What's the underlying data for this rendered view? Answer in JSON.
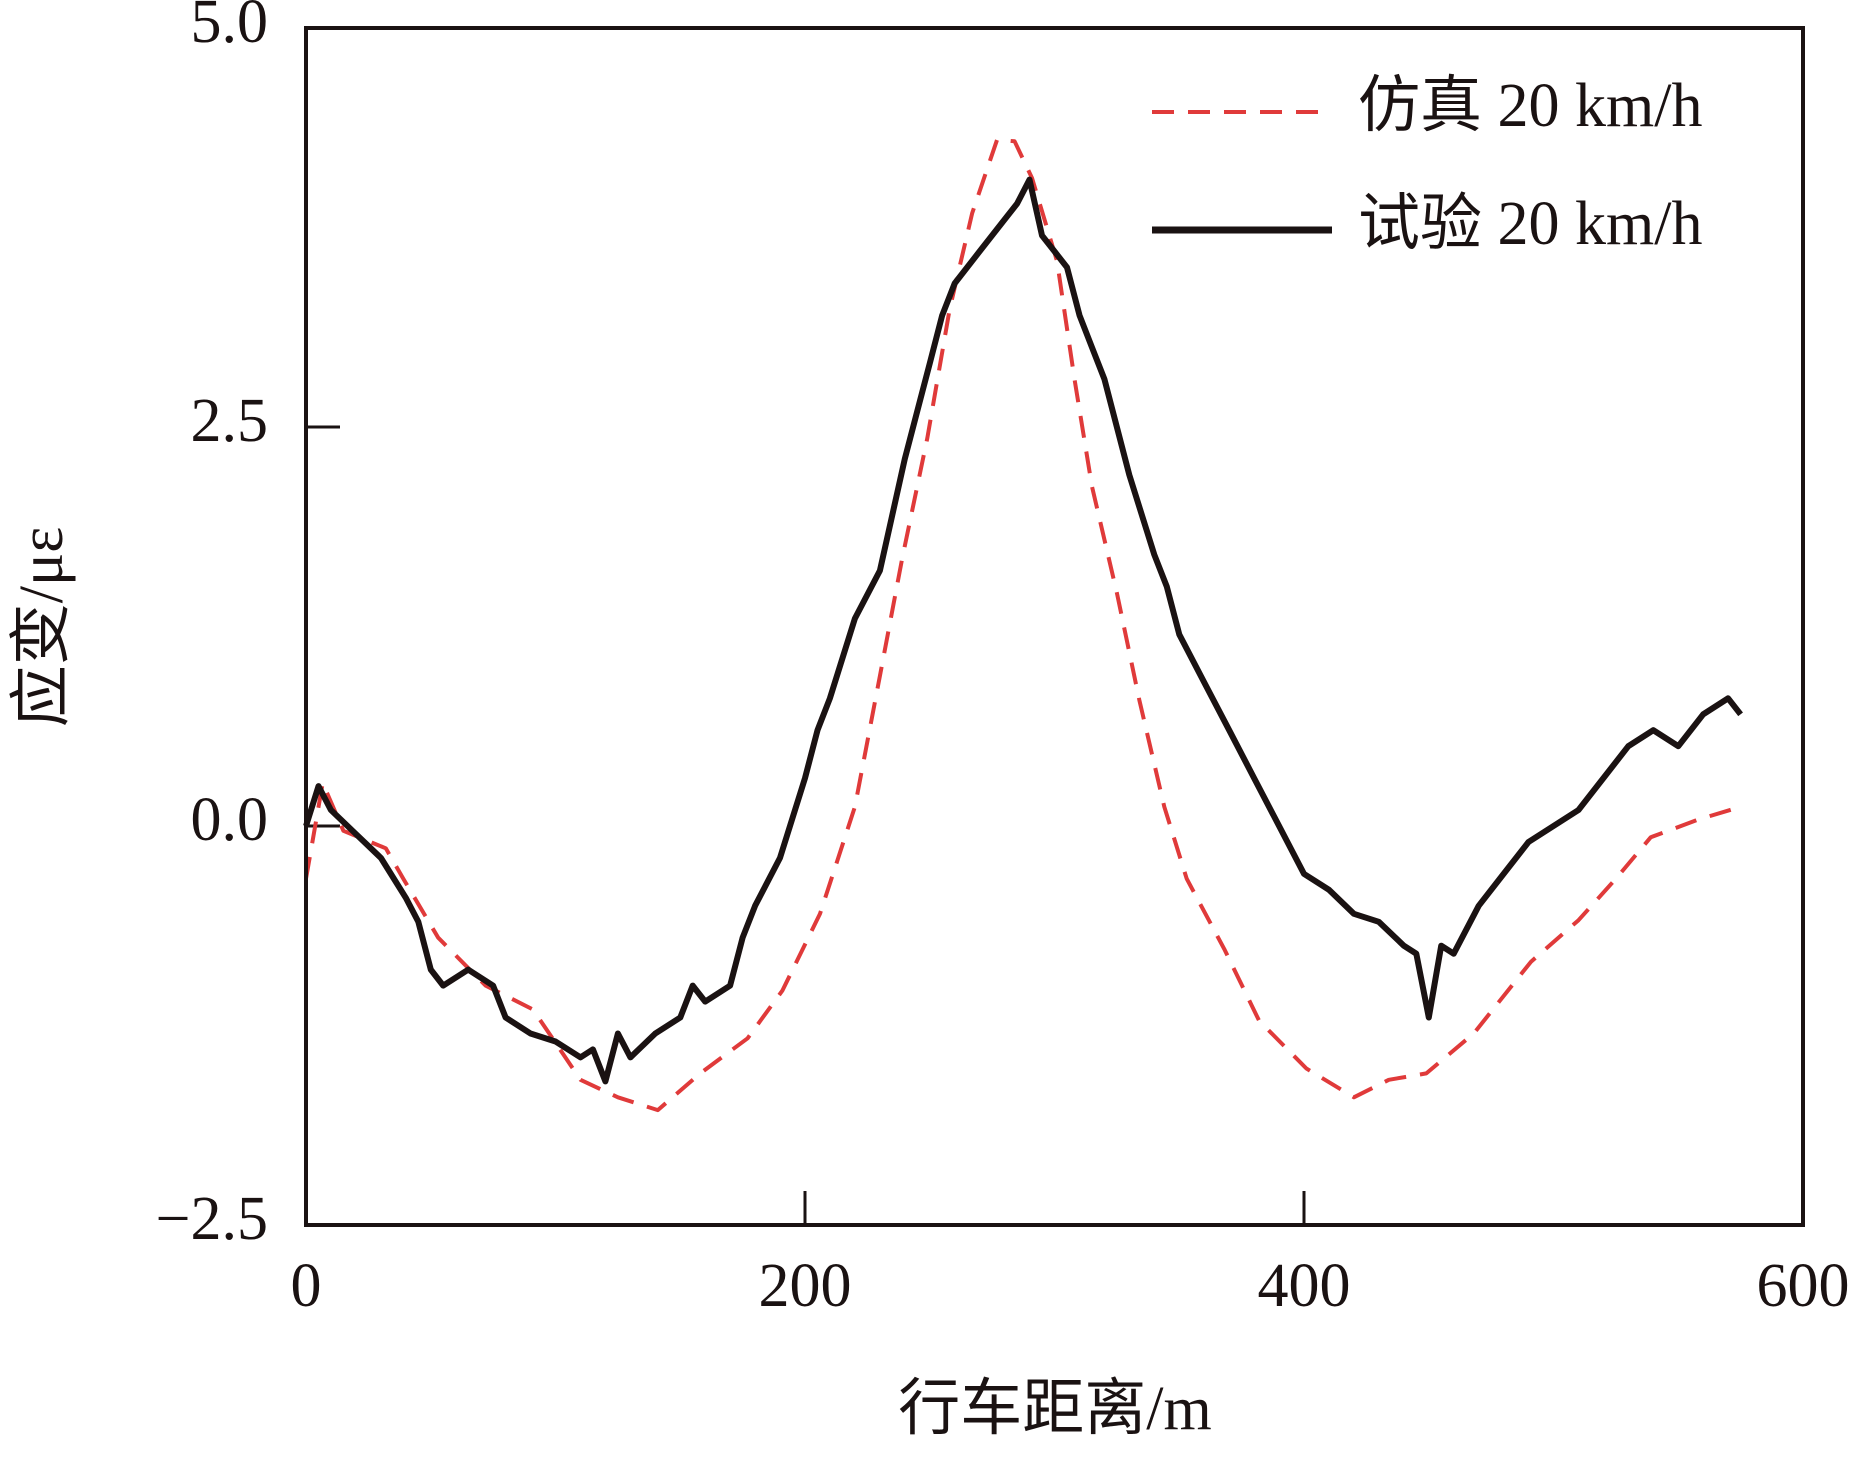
{
  "chart_data": {
    "type": "line",
    "x_label": "行车距离/m",
    "y_label": "应变/με",
    "xlim": [
      0,
      600
    ],
    "xticks": [
      0,
      200,
      400,
      600
    ],
    "ylim": [
      -2.5,
      5.0
    ],
    "yticks": [
      {
        "value": -2.5,
        "label": "−2.5"
      },
      {
        "value": 0,
        "label": "0.0"
      },
      2.5,
      {
        "value": 5.0,
        "label": "5.0"
      }
    ],
    "legend": "upper right",
    "series": [
      {
        "name": "仿真 20 km/h",
        "color": "#e03a3a",
        "style": "dashed",
        "x": [
          0,
          6.7,
          15,
          32,
          39,
          53,
          72,
          91,
          110,
          125,
          141,
          158,
          177,
          191,
          206,
          220,
          230,
          239,
          249,
          258,
          267,
          277,
          284,
          291,
          301,
          308,
          315,
          325,
          334,
          344,
          353,
          368,
          382,
          401,
          420,
          434,
          449,
          468,
          491,
          510,
          525,
          539,
          558,
          575
        ],
        "values": [
          -0.33,
          0.27,
          -0.03,
          -0.14,
          -0.33,
          -0.7,
          -1.0,
          -1.15,
          -1.59,
          -1.7,
          -1.78,
          -1.55,
          -1.33,
          -1.03,
          -0.55,
          0.12,
          0.94,
          1.68,
          2.43,
          3.24,
          3.84,
          4.3,
          4.29,
          4.06,
          3.54,
          2.8,
          2.13,
          1.46,
          0.79,
          0.12,
          -0.33,
          -0.77,
          -1.22,
          -1.52,
          -1.7,
          -1.59,
          -1.55,
          -1.3,
          -0.85,
          -0.59,
          -0.33,
          -0.07,
          0.04,
          0.12
        ]
      },
      {
        "name": "试验 20 km/h",
        "color": "#1a1212",
        "style": "solid",
        "x": [
          0,
          5,
          10,
          20,
          30,
          40,
          45,
          50,
          55,
          65,
          75,
          80,
          90,
          100,
          110,
          115,
          120,
          125,
          130,
          140,
          150,
          155,
          160,
          170,
          175,
          180,
          190,
          200,
          205,
          210,
          220,
          230,
          240,
          245,
          250,
          255,
          260,
          270,
          280,
          285,
          290,
          295,
          300,
          305,
          310,
          315,
          320,
          330,
          340,
          345,
          350,
          360,
          370,
          380,
          390,
          400,
          410,
          420,
          430,
          440,
          445,
          450,
          455,
          460,
          470,
          480,
          490,
          500,
          510,
          520,
          530,
          540,
          550,
          560,
          570,
          575
        ],
        "values": [
          0.0,
          0.25,
          0.1,
          -0.05,
          -0.2,
          -0.45,
          -0.6,
          -0.9,
          -1.0,
          -0.9,
          -1.0,
          -1.2,
          -1.3,
          -1.35,
          -1.45,
          -1.4,
          -1.6,
          -1.3,
          -1.45,
          -1.3,
          -1.2,
          -1.0,
          -1.1,
          -1.0,
          -0.7,
          -0.5,
          -0.2,
          0.3,
          0.6,
          0.8,
          1.3,
          1.6,
          2.3,
          2.6,
          2.9,
          3.2,
          3.4,
          3.6,
          3.8,
          3.9,
          4.05,
          3.7,
          3.6,
          3.5,
          3.2,
          3.0,
          2.8,
          2.2,
          1.7,
          1.5,
          1.2,
          0.9,
          0.6,
          0.3,
          0.0,
          -0.3,
          -0.4,
          -0.55,
          -0.6,
          -0.75,
          -0.8,
          -1.2,
          -0.75,
          -0.8,
          -0.5,
          -0.3,
          -0.1,
          0.0,
          0.1,
          0.3,
          0.5,
          0.6,
          0.5,
          0.7,
          0.8,
          0.7
        ]
      }
    ]
  }
}
